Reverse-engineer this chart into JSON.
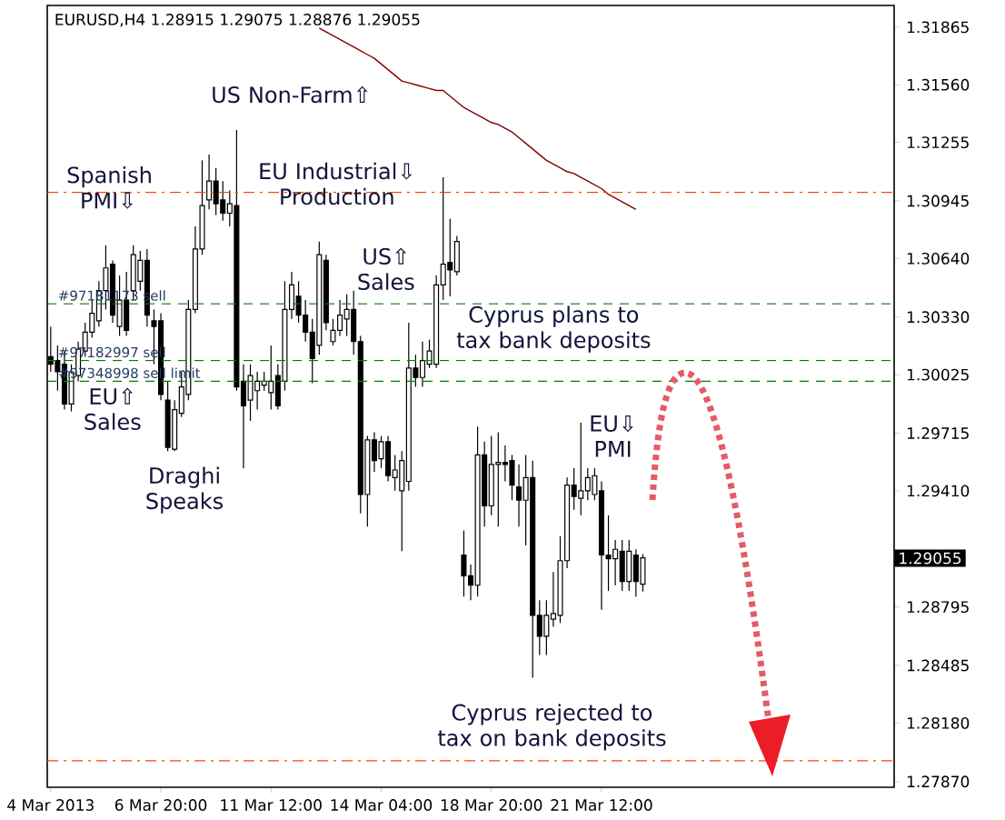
{
  "chart_data": {
    "type": "candlestick",
    "title": "EURUSD,H4  1.28915 1.29075 1.28876 1.29055",
    "color": "#000000",
    "categories": [
      "4 Mar 2013",
      null,
      null,
      null,
      null,
      null,
      null,
      null,
      null,
      null,
      null,
      null,
      null,
      null,
      null,
      null,
      "6 Mar 20:00",
      null,
      null,
      null,
      null,
      null,
      null,
      null,
      null,
      null,
      null,
      null,
      null,
      null,
      null,
      null,
      "11 Mar 12:00",
      null,
      null,
      null,
      null,
      null,
      null,
      null,
      null,
      null,
      null,
      null,
      null,
      null,
      null,
      null,
      "14 Mar 04:00",
      null,
      null,
      null,
      null,
      null,
      null,
      null,
      null,
      null,
      null,
      null,
      null,
      null,
      null,
      null,
      "18 Mar 20:00",
      null,
      null,
      null,
      null,
      null,
      null,
      null,
      null,
      null,
      null,
      null,
      null,
      null,
      null,
      null,
      "21 Mar 12:00",
      null,
      null,
      null,
      null,
      null,
      null,
      null,
      null,
      null,
      null,
      null,
      null,
      null,
      null,
      null,
      null,
      null,
      null,
      null,
      null,
      null,
      null,
      null,
      null,
      null,
      null,
      null,
      null,
      null,
      null,
      null,
      null,
      null,
      null,
      null,
      null,
      null,
      null,
      null,
      null,
      null,
      null
    ],
    "ohlc": [
      [
        1.3012,
        1.3028,
        1.3004,
        1.3008
      ],
      [
        1.301,
        1.3018,
        1.2994,
        1.3004
      ],
      [
        1.3008,
        1.3015,
        1.2984,
        1.2987
      ],
      [
        1.2987,
        1.3008,
        1.2983,
        1.3004
      ],
      [
        1.3002,
        1.302,
        1.2999,
        1.3016
      ],
      [
        1.3015,
        1.303,
        1.3012,
        1.3025
      ],
      [
        1.3025,
        1.3042,
        1.3022,
        1.3035
      ],
      [
        1.3031,
        1.3052,
        1.3028,
        1.3047
      ],
      [
        1.3047,
        1.3071,
        1.3037,
        1.3059
      ],
      [
        1.3061,
        1.3063,
        1.303,
        1.3034
      ],
      [
        1.3028,
        1.3055,
        1.3023,
        1.3042
      ],
      [
        1.3042,
        1.3057,
        1.3023,
        1.3026
      ],
      [
        1.3047,
        1.3071,
        1.3042,
        1.3066
      ],
      [
        1.3052,
        1.3068,
        1.3047,
        1.3063
      ],
      [
        1.3063,
        1.3069,
        1.3028,
        1.3034
      ],
      [
        1.3031,
        1.3037,
        1.3008,
        1.3028
      ],
      [
        1.3031,
        1.3035,
        1.2989,
        1.2992
      ],
      [
        1.2989,
        1.2999,
        1.2962,
        1.2964
      ],
      [
        1.2963,
        1.2989,
        1.2962,
        1.2984
      ],
      [
        1.2982,
        1.3004,
        1.298,
        1.2996
      ],
      [
        1.2992,
        1.3042,
        1.2989,
        1.3037
      ],
      [
        1.3037,
        1.3081,
        1.3035,
        1.3069
      ],
      [
        1.3069,
        1.3116,
        1.3066,
        1.3092
      ],
      [
        1.3095,
        1.3119,
        1.309,
        1.3105
      ],
      [
        1.3105,
        1.3112,
        1.3087,
        1.3093
      ],
      [
        1.3095,
        1.3105,
        1.3084,
        1.3088
      ],
      [
        1.3088,
        1.31,
        1.3081,
        1.3093
      ],
      [
        1.3092,
        1.3132,
        1.2994,
        1.2996
      ],
      [
        1.2999,
        1.3008,
        1.2953,
        1.2986
      ],
      [
        1.2989,
        1.3008,
        1.2978,
        1.3002
      ],
      [
        1.2994,
        1.3004,
        1.2984,
        1.2999
      ],
      [
        1.2997,
        1.3004,
        1.2994,
        1.2999
      ],
      [
        1.2993,
        1.3018,
        1.2984,
        1.2999
      ],
      [
        1.3002,
        1.3008,
        1.2984,
        1.2986
      ],
      [
        1.2999,
        1.3052,
        1.2994,
        1.3037
      ],
      [
        1.3037,
        1.3057,
        1.3032,
        1.305
      ],
      [
        1.3044,
        1.3052,
        1.303,
        1.3034
      ],
      [
        1.3034,
        1.3042,
        1.302,
        1.3025
      ],
      [
        1.3025,
        1.3032,
        1.2998,
        1.3011
      ],
      [
        1.3018,
        1.3073,
        1.3013,
        1.3066
      ],
      [
        1.3063,
        1.3066,
        1.3026,
        1.303
      ],
      [
        1.302,
        1.3032,
        1.3018,
        1.3026
      ],
      [
        1.3026,
        1.3042,
        1.3023,
        1.3034
      ],
      [
        1.3032,
        1.3045,
        1.3023,
        1.3037
      ],
      [
        1.3037,
        1.3047,
        1.3013,
        1.302
      ],
      [
        1.302,
        1.3023,
        1.2929,
        1.2939
      ],
      [
        1.2939,
        1.297,
        1.2922,
        1.2968
      ],
      [
        1.2968,
        1.2972,
        1.2951,
        1.2957
      ],
      [
        1.2958,
        1.297,
        1.2953,
        1.2967
      ],
      [
        1.2967,
        1.297,
        1.2946,
        1.2949
      ],
      [
        1.2948,
        1.296,
        1.2941,
        1.2952
      ],
      [
        1.2941,
        1.2962,
        1.2909,
        1.2957
      ],
      [
        1.2946,
        1.303,
        1.2941,
        1.3006
      ],
      [
        1.3006,
        1.3013,
        1.2996,
        1.3001
      ],
      [
        1.3001,
        1.302,
        1.2996,
        1.301
      ],
      [
        1.3008,
        1.3021,
        1.3006,
        1.3015
      ],
      [
        1.3008,
        1.3055,
        1.3006,
        1.305
      ],
      [
        1.305,
        1.3107,
        1.3042,
        1.3061
      ],
      [
        1.3062,
        1.3085,
        1.3044,
        1.3058
      ],
      [
        1.3057,
        1.3076,
        1.3055,
        1.3073
      ],
      [
        1.2907,
        1.292,
        1.2885,
        1.2896
      ],
      [
        1.2896,
        1.2902,
        1.2883,
        1.2891
      ],
      [
        1.2891,
        1.2975,
        1.2885,
        1.296
      ],
      [
        1.296,
        1.2967,
        1.2922,
        1.2933
      ],
      [
        1.2933,
        1.297,
        1.2928,
        1.2955
      ],
      [
        1.2955,
        1.2972,
        1.2922,
        1.2956
      ],
      [
        1.2956,
        1.2965,
        1.2946,
        1.2955
      ],
      [
        1.2957,
        1.296,
        1.2936,
        1.2944
      ],
      [
        1.2943,
        1.2955,
        1.2922,
        1.2936
      ],
      [
        1.2936,
        1.296,
        1.2912,
        1.2948
      ],
      [
        1.2948,
        1.2957,
        1.2842,
        1.2875
      ],
      [
        1.2875,
        1.2883,
        1.2854,
        1.2864
      ],
      [
        1.2864,
        1.2883,
        1.2854,
        1.2875
      ],
      [
        1.2873,
        1.2898,
        1.2869,
        1.2876
      ],
      [
        1.2875,
        1.2917,
        1.2871,
        1.2904
      ],
      [
        1.2904,
        1.2948,
        1.29,
        1.2944
      ],
      [
        1.2944,
        1.2953,
        1.2931,
        1.2938
      ],
      [
        1.2937,
        1.2977,
        1.2928,
        1.2941
      ],
      [
        1.2941,
        1.2953,
        1.2936,
        1.2948
      ],
      [
        1.2939,
        1.2953,
        1.2936,
        1.2949
      ],
      [
        1.2941,
        1.2946,
        1.2878,
        1.2907
      ],
      [
        1.2907,
        1.2928,
        1.2888,
        1.2905
      ],
      [
        1.2905,
        1.2915,
        1.2891,
        1.291
      ],
      [
        1.2909,
        1.2915,
        1.2888,
        1.2893
      ],
      [
        1.2893,
        1.2915,
        1.2888,
        1.2909
      ],
      [
        1.2907,
        1.291,
        1.2885,
        1.2893
      ],
      [
        1.28915,
        1.29075,
        1.28876,
        1.29055
      ],
      null,
      null,
      null,
      null,
      null,
      null,
      null,
      null,
      null,
      null,
      null,
      null,
      null,
      null,
      null,
      null,
      null,
      null,
      null,
      null,
      null,
      null,
      null,
      null,
      null,
      null,
      null,
      null,
      null,
      null,
      null,
      null,
      null,
      null,
      null,
      null
    ],
    "series": [
      {
        "type": "line",
        "color": "#800000",
        "values": [
          null,
          null,
          null,
          null,
          null,
          null,
          null,
          null,
          null,
          null,
          null,
          null,
          null,
          null,
          null,
          null,
          null,
          null,
          null,
          null,
          null,
          null,
          null,
          null,
          null,
          null,
          null,
          null,
          null,
          null,
          null,
          null,
          null,
          null,
          null,
          null,
          null,
          null,
          null,
          1.3186,
          1.3184,
          1.3182,
          1.318,
          1.3178,
          1.3176,
          1.3174,
          1.3172,
          1.317,
          1.3167,
          1.3164,
          1.3161,
          1.3158,
          1.3157,
          1.3156,
          1.3155,
          1.3154,
          1.3153,
          1.3153,
          1.315,
          1.3147,
          1.3144,
          1.3142,
          1.314,
          1.3138,
          1.3136,
          1.3135,
          1.3133,
          1.3131,
          1.3128,
          1.3125,
          1.3122,
          1.3119,
          1.3116,
          1.3114,
          1.3112,
          1.311,
          1.3109,
          1.3107,
          1.3105,
          1.3103,
          1.3101,
          1.3098,
          1.3096,
          1.3094,
          1.3092,
          1.309,
          null,
          null,
          null,
          null,
          null,
          null,
          null,
          null,
          null,
          null,
          null,
          null,
          null,
          null,
          null,
          null,
          null,
          null,
          null,
          null,
          null,
          null,
          null,
          null,
          null,
          null,
          null,
          null,
          null,
          null,
          null,
          null,
          null,
          null,
          null,
          null,
          null
        ]
      }
    ],
    "ylim": [
      1.2784,
      1.3198
    ],
    "yticks": [
      {
        "value": 1.31865,
        "label": "1.31865"
      },
      {
        "value": 1.3156,
        "label": "1.31560"
      },
      {
        "value": 1.31255,
        "label": "1.31255"
      },
      {
        "value": 1.30945,
        "label": "1.30945"
      },
      {
        "value": 1.3064,
        "label": "1.30640"
      },
      {
        "value": 1.3033,
        "label": "1.30330"
      },
      {
        "value": 1.30025,
        "label": "1.30025"
      },
      {
        "value": 1.29715,
        "label": "1.29715"
      },
      {
        "value": 1.2941,
        "label": "1.29410"
      },
      {
        "value": 1.28795,
        "label": "1.28795"
      },
      {
        "value": 1.28485,
        "label": "1.28485"
      },
      {
        "value": 1.2818,
        "label": "1.28180"
      },
      {
        "value": 1.2787,
        "label": "1.27870"
      }
    ],
    "ref_lines": [
      {
        "axis": "y",
        "value": 1.3099,
        "color": "#ff4500",
        "line_style": "dashdot"
      },
      {
        "axis": "y",
        "value": 1.2798,
        "color": "#ff4500",
        "line_style": "dashdot"
      },
      {
        "axis": "y",
        "value": 1.304,
        "label": "#97181173 sell",
        "color": "#008000",
        "line_style": "dashed"
      },
      {
        "axis": "y",
        "value": 1.301,
        "label": "#97182997 sell",
        "color": "#008000",
        "line_style": "dashed"
      },
      {
        "axis": "y",
        "value": 1.2999,
        "label": "#97348998 sell limit",
        "color": "#008000",
        "line_style": "dashed"
      }
    ],
    "annotations": [
      "Spanish PMI⇩",
      "US Non-Farm⇧",
      "EU Industrial⇩ Production",
      "US⇧ Sales",
      "Cyprus plans to tax bank deposits",
      "EU⇧ Sales",
      "Draghi Speaks",
      "EU⇩ PMI",
      "Cyprus rejected to tax on bank deposits",
      "1.29055"
    ]
  }
}
